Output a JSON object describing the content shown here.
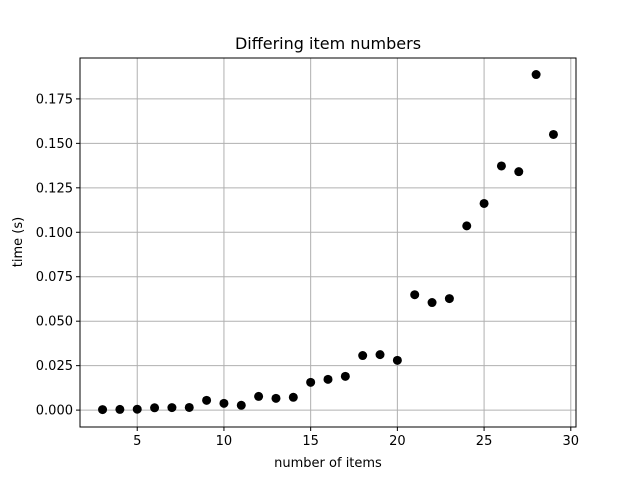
{
  "chart_data": {
    "type": "scatter",
    "title": "Differing item numbers",
    "xlabel": "number of items",
    "ylabel": "time (s)",
    "xlim": [
      1.7,
      30.3
    ],
    "ylim": [
      -0.0095,
      0.198
    ],
    "xticks": [
      5,
      10,
      15,
      20,
      25,
      30
    ],
    "xtick_labels": [
      "5",
      "10",
      "15",
      "20",
      "25",
      "30"
    ],
    "yticks": [
      0.0,
      0.025,
      0.05,
      0.075,
      0.1,
      0.125,
      0.15,
      0.175
    ],
    "ytick_labels": [
      "0.000",
      "0.025",
      "0.050",
      "0.075",
      "0.100",
      "0.125",
      "0.150",
      "0.175"
    ],
    "grid": true,
    "marker_color": "#000000",
    "points": [
      {
        "x": 3,
        "y": 0.0003
      },
      {
        "x": 4,
        "y": 0.0004
      },
      {
        "x": 5,
        "y": 0.0005
      },
      {
        "x": 6,
        "y": 0.0013
      },
      {
        "x": 7,
        "y": 0.0014
      },
      {
        "x": 8,
        "y": 0.0015
      },
      {
        "x": 9,
        "y": 0.0055
      },
      {
        "x": 10,
        "y": 0.0038
      },
      {
        "x": 11,
        "y": 0.0027
      },
      {
        "x": 12,
        "y": 0.0077
      },
      {
        "x": 13,
        "y": 0.0066
      },
      {
        "x": 14,
        "y": 0.0072
      },
      {
        "x": 15,
        "y": 0.0156
      },
      {
        "x": 16,
        "y": 0.0173
      },
      {
        "x": 17,
        "y": 0.019
      },
      {
        "x": 18,
        "y": 0.0307
      },
      {
        "x": 19,
        "y": 0.0312
      },
      {
        "x": 20,
        "y": 0.028
      },
      {
        "x": 21,
        "y": 0.0649
      },
      {
        "x": 22,
        "y": 0.0605
      },
      {
        "x": 23,
        "y": 0.0627
      },
      {
        "x": 24,
        "y": 0.1036
      },
      {
        "x": 25,
        "y": 0.1162
      },
      {
        "x": 26,
        "y": 0.1373
      },
      {
        "x": 27,
        "y": 0.1341
      },
      {
        "x": 28,
        "y": 0.1887
      },
      {
        "x": 29,
        "y": 0.155
      }
    ]
  }
}
